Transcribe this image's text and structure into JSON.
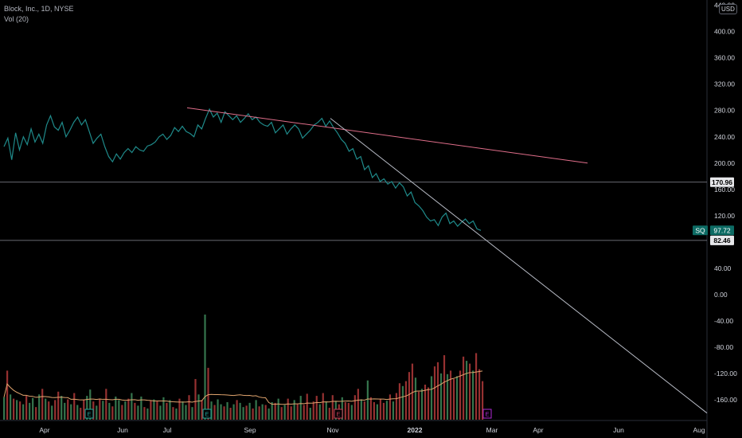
{
  "header": {
    "title": "Block, Inc., 1D, NYSE",
    "volume_label": "Vol (20)",
    "currency_badge": "USD"
  },
  "colors": {
    "price_line": "#1f8a8a",
    "trend_pink": "#e06e8a",
    "trend_gray": "#b8bcc6",
    "level_line": "#8a8d96",
    "volume_up": "#3e8a5a",
    "volume_down": "#b03a3a",
    "volume_ma": "#e0a46e",
    "sq_badge": "#0d6b64",
    "level_badge": "#40434d",
    "earnings_teal": "#22a89d",
    "earnings_red": "#c9415b",
    "earnings_purple": "#b02ad6"
  },
  "chart_data": {
    "type": "line",
    "title": "Block, Inc., 1D, NYSE",
    "x_axis_labels": [
      "Apr",
      "Jun",
      "Jul",
      "Sep",
      "Nov",
      "2022",
      "Mar",
      "Apr",
      "Jun",
      "Aug"
    ],
    "y_axis_labels": [
      "440.00",
      "400.00",
      "360.00",
      "320.00",
      "280.00",
      "240.00",
      "200.00",
      "160.00",
      "120.00",
      "80.00",
      "40.00",
      "0.00",
      "-40.00",
      "-80.00",
      "-120.00",
      "-160.00"
    ],
    "y_axis_values": [
      440,
      400,
      360,
      320,
      280,
      240,
      200,
      160,
      120,
      80,
      40,
      0,
      -40,
      -80,
      -120,
      -160
    ],
    "ylim": [
      -178,
      444
    ],
    "grid": false,
    "price_series": {
      "name": "SQ",
      "last_value_label": "97.72",
      "values": [
        225,
        238,
        205,
        246,
        220,
        240,
        228,
        252,
        232,
        244,
        230,
        258,
        272,
        255,
        250,
        262,
        240,
        250,
        262,
        270,
        258,
        266,
        248,
        230,
        238,
        244,
        225,
        210,
        202,
        214,
        206,
        216,
        222,
        216,
        225,
        220,
        218,
        226,
        228,
        232,
        240,
        244,
        236,
        242,
        254,
        248,
        256,
        248,
        245,
        240,
        258,
        252,
        268,
        282,
        270,
        276,
        262,
        278,
        272,
        266,
        272,
        262,
        268,
        275,
        266,
        270,
        262,
        258,
        256,
        262,
        246,
        252,
        258,
        244,
        252,
        258,
        252,
        238,
        244,
        250,
        258,
        262,
        268,
        256,
        264,
        254,
        246,
        236,
        230,
        218,
        222,
        206,
        210,
        190,
        196,
        178,
        184,
        172,
        176,
        168,
        172,
        162,
        170,
        164,
        150,
        156,
        140,
        135,
        128,
        118,
        112,
        114,
        105,
        118,
        124,
        108,
        112,
        104,
        110,
        115,
        108,
        112,
        100,
        97.72
      ]
    },
    "horizontal_levels": [
      {
        "value": 170.96,
        "label": "170.96"
      },
      {
        "value": 82.46,
        "label": "82.46"
      }
    ],
    "trendlines": [
      {
        "name": "pink",
        "start": {
          "month": "Jul",
          "price": 284
        },
        "end": {
          "month": "May",
          "price": 200
        }
      },
      {
        "name": "gray",
        "start": {
          "month": "Nov",
          "price": 268
        },
        "end": {
          "month": "Aug",
          "price": -180
        }
      }
    ],
    "volume": {
      "label": "Vol (20)",
      "values": [
        32,
        70,
        36,
        30,
        28,
        26,
        22,
        34,
        24,
        31,
        18,
        36,
        44,
        30,
        26,
        20,
        28,
        40,
        34,
        24,
        29,
        22,
        38,
        21,
        17,
        28,
        34,
        43,
        26,
        20,
        30,
        27,
        44,
        24,
        19,
        33,
        28,
        21,
        26,
        30,
        38,
        24,
        20,
        33,
        18,
        16,
        27,
        29,
        26,
        20,
        32,
        24,
        28,
        18,
        16,
        30,
        26,
        21,
        35,
        18,
        58,
        36,
        28,
        150,
        74,
        26,
        21,
        29,
        22,
        19,
        25,
        17,
        22,
        28,
        24,
        18,
        20,
        24,
        16,
        28,
        19,
        22,
        21,
        16,
        25,
        24,
        30,
        18,
        21,
        30,
        19,
        28,
        22,
        34,
        21,
        37,
        17,
        26,
        34,
        22,
        38,
        26,
        17,
        35,
        26,
        22,
        32,
        25,
        24,
        21,
        35,
        44,
        29,
        26,
        56,
        32,
        25,
        22,
        30,
        24,
        27,
        36,
        26,
        38,
        52,
        48,
        55,
        68,
        80,
        60,
        40,
        44,
        50,
        46,
        62,
        76,
        82,
        66,
        92,
        65,
        70,
        58,
        62,
        70,
        90,
        84,
        80,
        70,
        95,
        72,
        55
      ],
      "up": [
        1,
        0,
        1,
        0,
        1,
        0,
        1,
        0,
        1,
        1,
        0,
        1,
        0,
        1,
        0,
        1,
        0,
        0,
        1,
        1,
        0,
        1,
        0,
        1,
        0,
        0,
        1,
        1,
        0,
        1,
        0,
        1,
        0,
        1,
        0,
        1,
        1,
        0,
        1,
        0,
        1,
        0,
        1,
        1,
        0,
        1,
        0,
        1,
        0,
        1,
        1,
        0,
        1,
        0,
        1,
        0,
        1,
        1,
        0,
        1,
        0,
        1,
        0,
        1,
        0,
        1,
        0,
        1,
        1,
        0,
        1,
        0,
        1,
        0,
        1,
        1,
        0,
        1,
        0,
        1,
        0,
        1,
        0,
        1,
        1,
        0,
        1,
        0,
        1,
        0,
        0,
        1,
        0,
        1,
        0,
        0,
        1,
        0,
        0,
        1,
        0,
        1,
        0,
        0,
        1,
        0,
        1,
        0,
        0,
        1,
        0,
        0,
        1,
        0,
        1,
        0,
        0,
        1,
        0,
        0,
        1,
        0,
        1,
        0,
        0,
        1,
        0,
        0,
        0,
        1,
        0,
        1,
        0,
        0,
        1,
        0,
        0,
        1,
        0,
        1,
        0,
        0,
        1,
        0,
        0,
        1,
        0,
        1,
        0,
        0,
        0
      ]
    },
    "earnings_markers": [
      {
        "label": "E",
        "color": "teal"
      },
      {
        "label": "E",
        "color": "teal"
      },
      {
        "label": "E",
        "color": "red"
      },
      {
        "label": "E",
        "color": "purple"
      }
    ]
  }
}
